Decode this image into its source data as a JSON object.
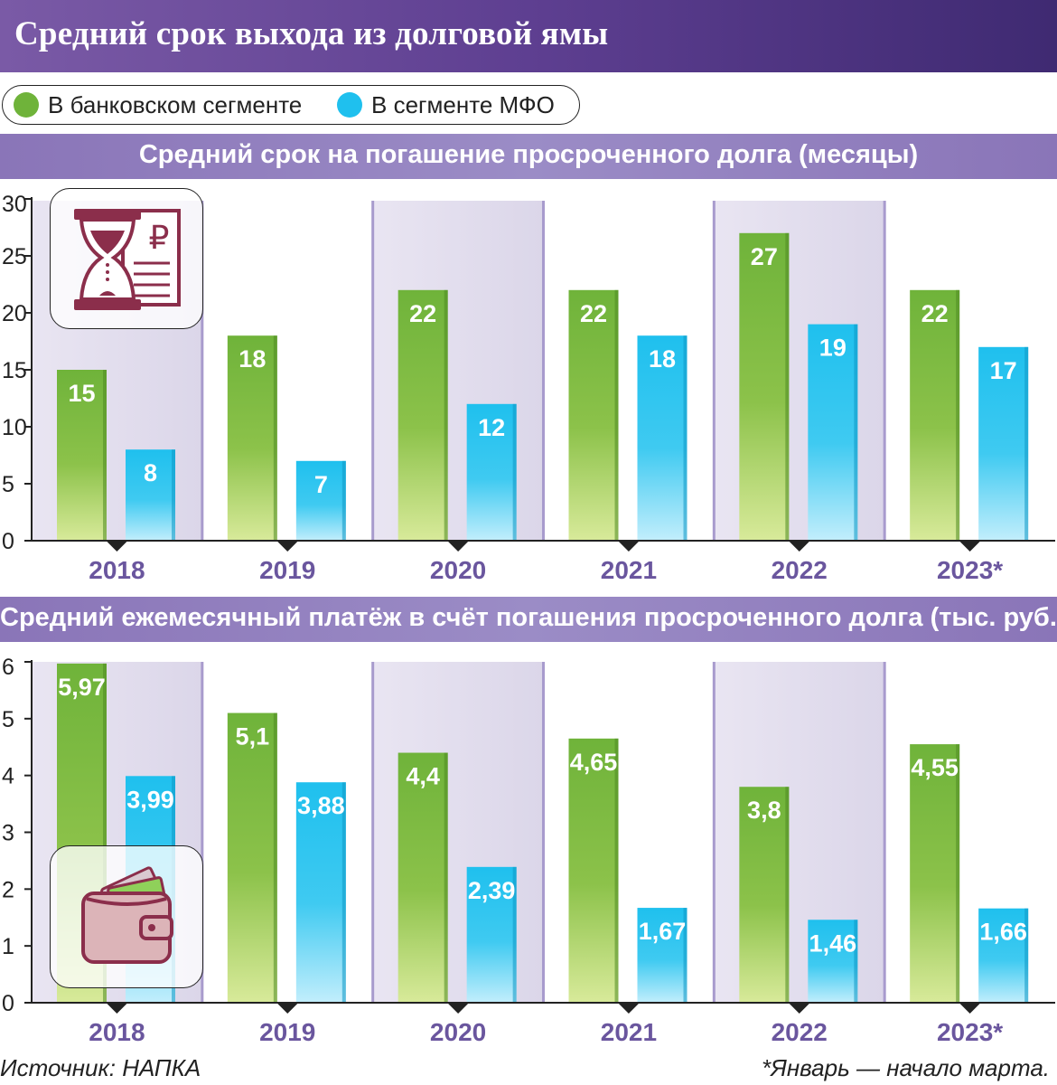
{
  "title": "Средний срок выхода из долговой ямы",
  "legend": [
    {
      "name": "В банковском сегменте",
      "color": "#6fb33a"
    },
    {
      "name": "В сегменте МФО",
      "color": "#1fc0ee"
    }
  ],
  "colors": {
    "bank_top": "#6fb33a",
    "bank_bottom": "#d8ea9a",
    "mfo_top": "#1fc0ee",
    "mfo_bottom": "#c2eefc",
    "shade": "#dbd6e9",
    "divider": "#a89bcd",
    "header": "#5e3f91",
    "band": "#8a75b8"
  },
  "icons": {
    "chart1": "hourglass-document-ruble-icon",
    "chart2": "wallet-banknotes-icon"
  },
  "chart_data": [
    {
      "type": "bar",
      "title": "Средний срок на погашение просроченного долга (месяцы)",
      "categories": [
        "2018",
        "2019",
        "2020",
        "2021",
        "2022",
        "2023*"
      ],
      "series": [
        {
          "name": "В банковском сегменте",
          "values": [
            15,
            18,
            22,
            22,
            27,
            22
          ],
          "labels": [
            "15",
            "18",
            "22",
            "22",
            "27",
            "22"
          ]
        },
        {
          "name": "В сегменте МФО",
          "values": [
            8,
            7,
            12,
            18,
            19,
            17
          ],
          "labels": [
            "8",
            "7",
            "12",
            "18",
            "19",
            "17"
          ]
        }
      ],
      "ylim": [
        0,
        30
      ],
      "yticks": [
        "0",
        "5",
        "10",
        "15",
        "20",
        "25",
        "30"
      ],
      "shaded_categories": [
        "2018",
        "2020",
        "2022"
      ]
    },
    {
      "type": "bar",
      "title": "Средний ежемесячный платёж в счёт погашения просроченного долга (тыс. руб.)",
      "categories": [
        "2018",
        "2019",
        "2020",
        "2021",
        "2022",
        "2023*"
      ],
      "series": [
        {
          "name": "В банковском сегменте",
          "values": [
            5.97,
            5.1,
            4.4,
            4.65,
            3.8,
            4.55
          ],
          "labels": [
            "5,97",
            "5,1",
            "4,4",
            "4,65",
            "3,8",
            "4,55"
          ]
        },
        {
          "name": "В сегменте МФО",
          "values": [
            3.99,
            3.88,
            2.39,
            1.67,
            1.46,
            1.66
          ],
          "labels": [
            "3,99",
            "3,88",
            "2,39",
            "1,67",
            "1,46",
            "1,66"
          ]
        }
      ],
      "ylim": [
        0,
        6
      ],
      "yticks": [
        "0",
        "1",
        "2",
        "3",
        "4",
        "5",
        "6"
      ],
      "shaded_categories": [
        "2018",
        "2020",
        "2022"
      ]
    }
  ],
  "footer": {
    "source": "Источник: НАПКА",
    "note": "*Январь — начало марта."
  }
}
